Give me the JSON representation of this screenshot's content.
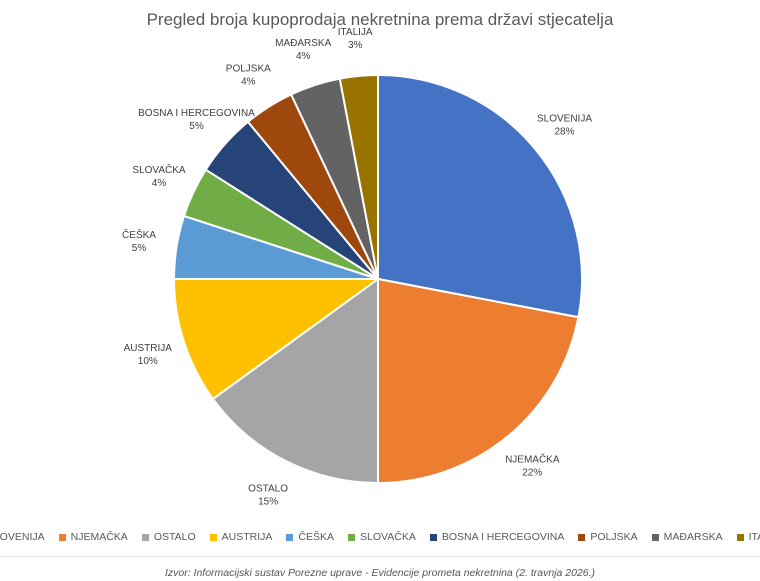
{
  "chart_data": {
    "type": "pie",
    "title": "Pregled broja kupoprodaja nekretnina prema državi stjecatelja",
    "slices": [
      {
        "name": "SLOVENIJA",
        "value": 28,
        "label": "28%",
        "color": "#4472C4"
      },
      {
        "name": "NJEMAČKA",
        "value": 22,
        "label": "22%",
        "color": "#ED7D31"
      },
      {
        "name": "OSTALO",
        "value": 15,
        "label": "15%",
        "color": "#A5A5A5"
      },
      {
        "name": "AUSTRIJA",
        "value": 10,
        "label": "10%",
        "color": "#FFC000"
      },
      {
        "name": "ČEŠKA",
        "value": 5,
        "label": "5%",
        "color": "#5B9BD5"
      },
      {
        "name": "SLOVAČKA",
        "value": 4,
        "label": "4%",
        "color": "#70AD47"
      },
      {
        "name": "BOSNA I HERCEGOVINA",
        "value": 5,
        "label": "5%",
        "color": "#264478"
      },
      {
        "name": "POLJSKA",
        "value": 4,
        "label": "4%",
        "color": "#9E480E"
      },
      {
        "name": "MAĐARSKA",
        "value": 4,
        "label": "4%",
        "color": "#636363"
      },
      {
        "name": "ITALIJA",
        "value": 3,
        "label": "3%",
        "color": "#997300"
      }
    ],
    "legend_position": "bottom"
  },
  "source": "Izvor: Informacijski sustav Porezne uprave - Evidencije prometa nekretnina (2. travnja 2026.)"
}
